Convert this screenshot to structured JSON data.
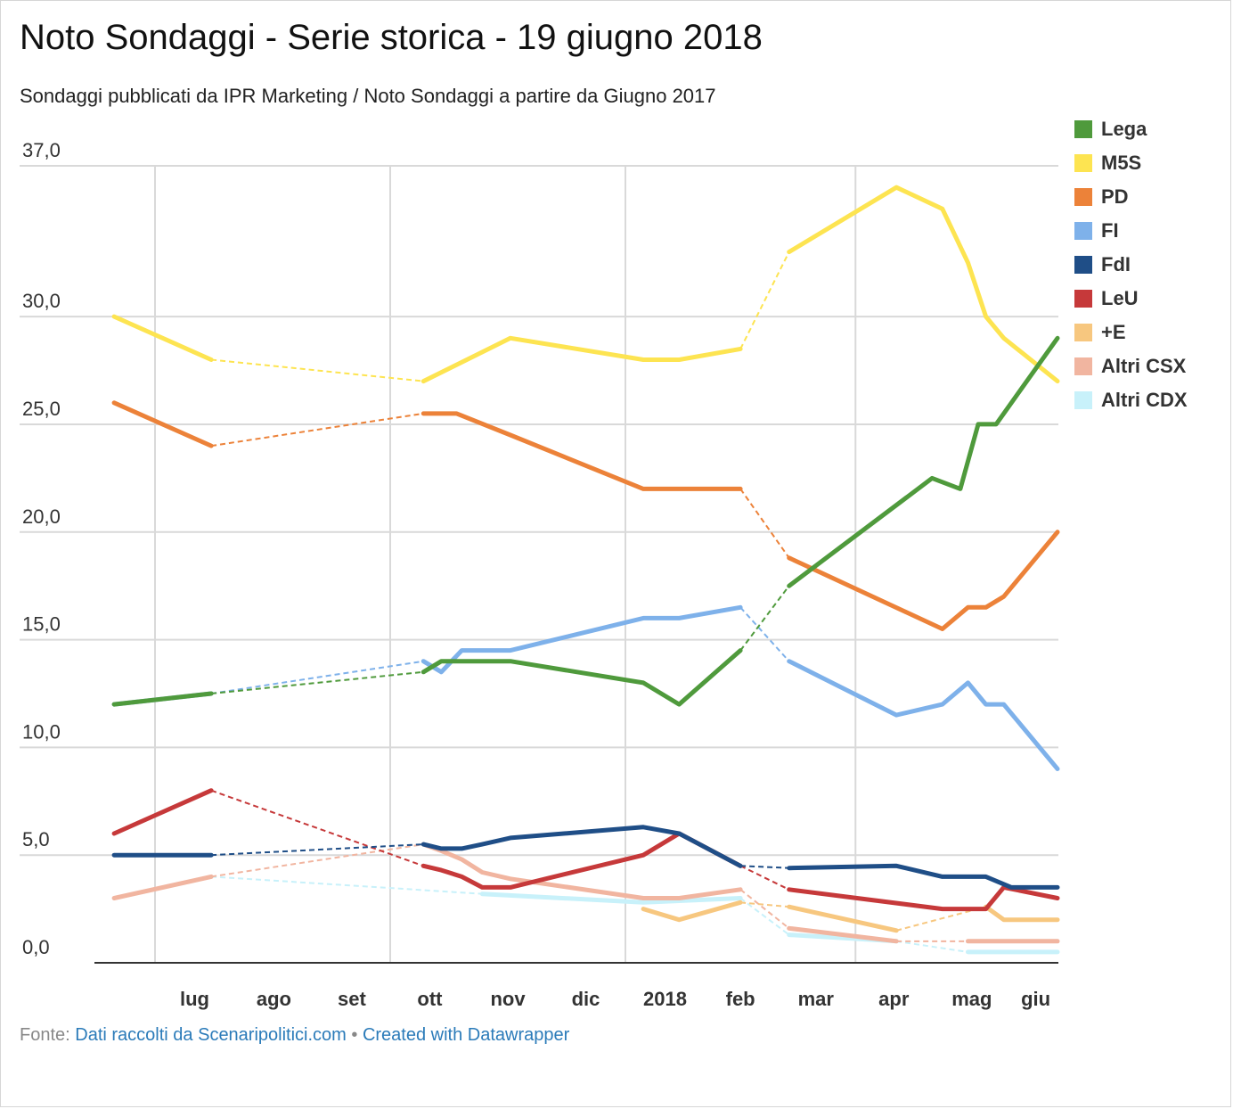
{
  "header": {
    "title": "Noto Sondaggi - Serie storica - 19 giugno 2018",
    "subtitle": "Sondaggi pubblicati da IPR Marketing / Noto Sondaggi a partire da Giugno 2017"
  },
  "footer": {
    "prefix": "Fonte: ",
    "source_label": "Dati raccolti da Scenaripolitici.com",
    "separator": " • ",
    "credit_label": "Created with Datawrapper"
  },
  "colors": {
    "Lega": "#4f9a3c",
    "M5S": "#fde451",
    "PD": "#ec8239",
    "FI": "#7eb1ea",
    "FdI": "#1f4e87",
    "LeU": "#c6393a",
    "+E": "#f7c77f",
    "Altri CSX": "#f1b5a0",
    "Altri CDX": "#c8f1fa"
  },
  "legend": [
    "Lega",
    "M5S",
    "PD",
    "FI",
    "FdI",
    "LeU",
    "+E",
    "Altri CSX",
    "Altri CDX"
  ],
  "chart_data": {
    "type": "line",
    "title": "Noto Sondaggi - Serie storica - 19 giugno 2018",
    "ylim": [
      0,
      37
    ],
    "xlim": [
      "2017-06-01",
      "2018-06-20"
    ],
    "yticks": [
      {
        "value": 0,
        "label": "0,0"
      },
      {
        "value": 5,
        "label": "5,0"
      },
      {
        "value": 10,
        "label": "10,0"
      },
      {
        "value": 15,
        "label": "15,0"
      },
      {
        "value": 20,
        "label": "20,0"
      },
      {
        "value": 25,
        "label": "25,0"
      },
      {
        "value": 30,
        "label": "30,0"
      },
      {
        "value": 37,
        "label": "37,0"
      }
    ],
    "xticks": [
      {
        "date": "2017-07-01",
        "label": "lug"
      },
      {
        "date": "2017-08-01",
        "label": "ago"
      },
      {
        "date": "2017-09-01",
        "label": "set"
      },
      {
        "date": "2017-10-01",
        "label": "ott"
      },
      {
        "date": "2017-11-01",
        "label": "nov"
      },
      {
        "date": "2017-12-01",
        "label": "dic"
      },
      {
        "date": "2018-01-01",
        "label": "2018"
      },
      {
        "date": "2018-02-01",
        "label": "feb"
      },
      {
        "date": "2018-03-01",
        "label": "mar"
      },
      {
        "date": "2018-04-01",
        "label": "apr"
      },
      {
        "date": "2018-05-01",
        "label": "mag"
      },
      {
        "date": "2018-06-01",
        "label": "giu"
      }
    ],
    "xgrid": [
      "2017-07-01",
      "2017-10-01",
      "2018-01-01",
      "2018-04-01"
    ],
    "series": [
      {
        "name": "Lega",
        "points": [
          [
            "2017-06-15",
            12.0
          ],
          [
            "2017-07-23",
            12.5
          ],
          null,
          [
            "2017-10-14",
            13.5
          ],
          [
            "2017-10-21",
            14.0
          ],
          [
            "2017-11-06",
            14.0
          ],
          [
            "2017-11-17",
            14.0
          ],
          [
            "2018-01-08",
            13.0
          ],
          [
            "2018-01-22",
            12.0
          ],
          [
            "2018-02-15",
            14.5
          ],
          null,
          [
            "2018-03-06",
            17.5
          ],
          [
            "2018-05-01",
            22.5
          ],
          [
            "2018-05-12",
            22.0
          ],
          [
            "2018-05-19",
            25.0
          ],
          [
            "2018-05-26",
            25.0
          ],
          [
            "2018-06-19",
            29.0
          ]
        ]
      },
      {
        "name": "M5S",
        "points": [
          [
            "2017-06-15",
            30.0
          ],
          [
            "2017-07-23",
            28.0
          ],
          null,
          [
            "2017-10-14",
            27.0
          ],
          [
            "2017-11-17",
            29.0
          ],
          [
            "2018-01-08",
            28.0
          ],
          [
            "2018-01-22",
            28.0
          ],
          [
            "2018-02-15",
            28.5
          ],
          null,
          [
            "2018-03-06",
            33.0
          ],
          [
            "2018-04-17",
            36.0
          ],
          [
            "2018-05-05",
            35.0
          ],
          [
            "2018-05-15",
            32.5
          ],
          [
            "2018-05-22",
            30.0
          ],
          [
            "2018-05-29",
            29.0
          ],
          [
            "2018-06-19",
            27.0
          ]
        ]
      },
      {
        "name": "PD",
        "points": [
          [
            "2017-06-15",
            26.0
          ],
          [
            "2017-07-23",
            24.0
          ],
          null,
          [
            "2017-10-14",
            25.5
          ],
          [
            "2017-10-27",
            25.5
          ],
          [
            "2017-11-17",
            24.5
          ],
          [
            "2018-01-08",
            22.0
          ],
          [
            "2018-01-22",
            22.0
          ],
          [
            "2018-02-15",
            22.0
          ],
          null,
          [
            "2018-03-06",
            18.8
          ],
          [
            "2018-05-05",
            15.5
          ],
          [
            "2018-05-15",
            16.5
          ],
          [
            "2018-05-22",
            16.5
          ],
          [
            "2018-05-29",
            17.0
          ],
          [
            "2018-06-19",
            20.0
          ]
        ]
      },
      {
        "name": "FI",
        "points": [
          [
            "2017-06-15",
            12.0
          ],
          [
            "2017-07-23",
            12.5
          ],
          null,
          [
            "2017-10-14",
            14.0
          ],
          [
            "2017-10-21",
            13.5
          ],
          [
            "2017-10-29",
            14.5
          ],
          [
            "2017-11-17",
            14.5
          ],
          [
            "2018-01-08",
            16.0
          ],
          [
            "2018-01-22",
            16.0
          ],
          [
            "2018-02-15",
            16.5
          ],
          null,
          [
            "2018-03-06",
            14.0
          ],
          [
            "2018-04-17",
            11.5
          ],
          [
            "2018-05-05",
            12.0
          ],
          [
            "2018-05-15",
            13.0
          ],
          [
            "2018-05-22",
            12.0
          ],
          [
            "2018-05-29",
            12.0
          ],
          [
            "2018-06-19",
            9.0
          ]
        ]
      },
      {
        "name": "FdI",
        "points": [
          [
            "2017-06-15",
            5.0
          ],
          [
            "2017-07-23",
            5.0
          ],
          null,
          [
            "2017-10-14",
            5.5
          ],
          [
            "2017-10-21",
            5.3
          ],
          [
            "2017-10-29",
            5.3
          ],
          [
            "2017-11-06",
            5.5
          ],
          [
            "2017-11-17",
            5.8
          ],
          [
            "2018-01-08",
            6.3
          ],
          [
            "2018-01-22",
            6.0
          ],
          [
            "2018-02-15",
            4.5
          ],
          null,
          [
            "2018-03-06",
            4.4
          ],
          [
            "2018-04-17",
            4.5
          ],
          [
            "2018-05-05",
            4.0
          ],
          [
            "2018-05-22",
            4.0
          ],
          [
            "2018-06-01",
            3.5
          ],
          [
            "2018-06-19",
            3.5
          ]
        ]
      },
      {
        "name": "LeU",
        "points": [
          [
            "2017-06-15",
            6.0
          ],
          [
            "2017-07-23",
            8.0
          ],
          null,
          [
            "2017-10-14",
            4.5
          ],
          [
            "2017-10-21",
            4.3
          ],
          [
            "2017-10-29",
            4.0
          ],
          [
            "2017-11-06",
            3.5
          ],
          [
            "2017-11-17",
            3.5
          ],
          [
            "2018-01-08",
            5.0
          ],
          [
            "2018-01-22",
            6.0
          ],
          [
            "2018-02-15",
            4.5
          ],
          null,
          [
            "2018-03-06",
            3.4
          ],
          [
            "2018-05-05",
            2.5
          ],
          [
            "2018-05-22",
            2.5
          ],
          [
            "2018-05-29",
            3.5
          ],
          [
            "2018-06-19",
            3.0
          ]
        ]
      },
      {
        "name": "+E",
        "points": [
          [
            "2018-01-08",
            2.5
          ],
          [
            "2018-01-22",
            2.0
          ],
          [
            "2018-02-15",
            2.8
          ],
          null,
          [
            "2018-03-06",
            2.6
          ],
          [
            "2018-04-17",
            1.5
          ],
          null,
          [
            "2018-05-22",
            2.6
          ],
          [
            "2018-05-29",
            2.0
          ],
          [
            "2018-06-19",
            2.0
          ]
        ]
      },
      {
        "name": "Altri CSX",
        "points": [
          [
            "2017-06-15",
            3.0
          ],
          [
            "2017-07-23",
            4.0
          ],
          null,
          [
            "2017-10-14",
            5.5
          ],
          [
            "2017-10-21",
            5.2
          ],
          [
            "2017-10-29",
            4.8
          ],
          [
            "2017-11-06",
            4.2
          ],
          [
            "2017-11-17",
            3.9
          ],
          [
            "2018-01-08",
            3.0
          ],
          [
            "2018-01-22",
            3.0
          ],
          [
            "2018-02-15",
            3.4
          ],
          null,
          [
            "2018-03-06",
            1.6
          ],
          [
            "2018-04-17",
            1.0
          ],
          null,
          [
            "2018-05-15",
            1.0
          ],
          [
            "2018-06-19",
            1.0
          ]
        ]
      },
      {
        "name": "Altri CDX",
        "points": [
          [
            "2017-07-23",
            4.0
          ],
          null,
          [
            "2017-11-06",
            3.2
          ],
          [
            "2018-01-08",
            2.8
          ],
          [
            "2018-02-15",
            3.0
          ],
          null,
          [
            "2018-03-06",
            1.3
          ],
          [
            "2018-04-17",
            1.0
          ],
          null,
          [
            "2018-05-15",
            0.5
          ],
          [
            "2018-06-19",
            0.5
          ]
        ]
      }
    ],
    "grid": true,
    "legend_position": "right"
  }
}
